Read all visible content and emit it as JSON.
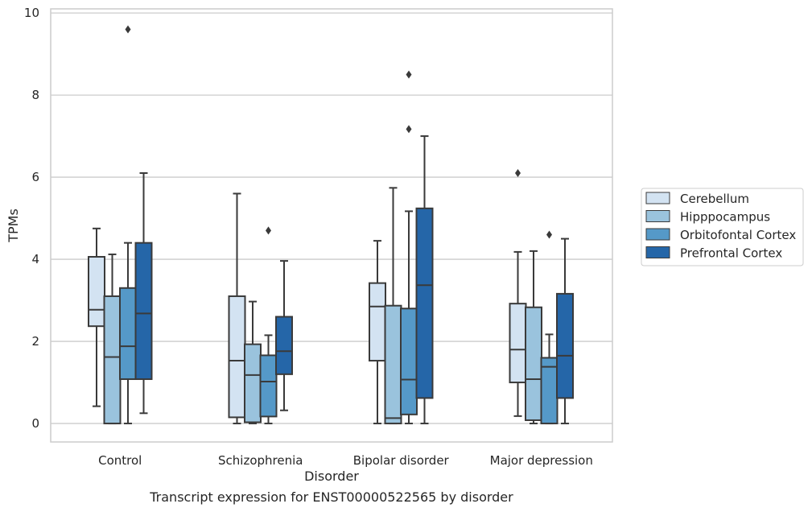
{
  "chart_data": {
    "type": "box",
    "title": "Transcript expression for ENST00000522565 by disorder",
    "xlabel": "Disorder",
    "ylabel": "TPMs",
    "ylim": [
      -0.45,
      10.1
    ],
    "yticks": [
      0,
      2,
      4,
      6,
      8,
      10
    ],
    "grid": true,
    "legend_position": "right",
    "categories": [
      "Control",
      "Schizophrenia",
      "Bipolar disorder",
      "Major depression"
    ],
    "series": [
      {
        "name": "Cerebellum",
        "color": "#d3e3f2",
        "boxes": [
          {
            "whisker_low": 0.42,
            "q1": 2.37,
            "median": 2.77,
            "q3": 4.06,
            "whisker_high": 4.75,
            "outliers": []
          },
          {
            "whisker_low": 0.0,
            "q1": 0.15,
            "median": 1.53,
            "q3": 3.1,
            "whisker_high": 5.6,
            "outliers": []
          },
          {
            "whisker_low": 0.0,
            "q1": 1.53,
            "median": 2.85,
            "q3": 3.42,
            "whisker_high": 4.45,
            "outliers": []
          },
          {
            "whisker_low": 0.18,
            "q1": 1.0,
            "median": 1.8,
            "q3": 2.92,
            "whisker_high": 4.18,
            "outliers": [
              6.1
            ]
          }
        ]
      },
      {
        "name": "Hipppocampus",
        "color": "#9ac3dd",
        "boxes": [
          {
            "whisker_low": 0.0,
            "q1": 0.0,
            "median": 1.62,
            "q3": 3.1,
            "whisker_high": 4.12,
            "outliers": []
          },
          {
            "whisker_low": 0.0,
            "q1": 0.03,
            "median": 1.18,
            "q3": 1.93,
            "whisker_high": 2.97,
            "outliers": []
          },
          {
            "whisker_low": 0.0,
            "q1": 0.0,
            "median": 0.13,
            "q3": 2.87,
            "whisker_high": 5.74,
            "outliers": []
          },
          {
            "whisker_low": 0.0,
            "q1": 0.08,
            "median": 1.08,
            "q3": 2.83,
            "whisker_high": 4.2,
            "outliers": []
          }
        ]
      },
      {
        "name": "Orbitofontal Cortex",
        "color": "#5599c8",
        "boxes": [
          {
            "whisker_low": 0.0,
            "q1": 1.08,
            "median": 1.88,
            "q3": 3.3,
            "whisker_high": 4.4,
            "outliers": [
              9.6
            ]
          },
          {
            "whisker_low": 0.0,
            "q1": 0.17,
            "median": 1.02,
            "q3": 1.66,
            "whisker_high": 2.15,
            "outliers": [
              4.7
            ]
          },
          {
            "whisker_low": 0.0,
            "q1": 0.22,
            "median": 1.07,
            "q3": 2.8,
            "whisker_high": 5.17,
            "outliers": [
              7.17,
              8.5
            ]
          },
          {
            "whisker_low": 0.0,
            "q1": 0.0,
            "median": 1.38,
            "q3": 1.6,
            "whisker_high": 2.17,
            "outliers": [
              4.6
            ]
          }
        ]
      },
      {
        "name": "Prefrontal Cortex",
        "color": "#2566a8",
        "boxes": [
          {
            "whisker_low": 0.25,
            "q1": 1.08,
            "median": 2.68,
            "q3": 4.4,
            "whisker_high": 6.1,
            "outliers": []
          },
          {
            "whisker_low": 0.32,
            "q1": 1.2,
            "median": 1.76,
            "q3": 2.6,
            "whisker_high": 3.96,
            "outliers": []
          },
          {
            "whisker_low": 0.0,
            "q1": 0.62,
            "median": 3.37,
            "q3": 5.24,
            "whisker_high": 7.0,
            "outliers": []
          },
          {
            "whisker_low": 0.0,
            "q1": 0.62,
            "median": 1.65,
            "q3": 3.16,
            "whisker_high": 4.5,
            "outliers": []
          }
        ]
      }
    ]
  }
}
